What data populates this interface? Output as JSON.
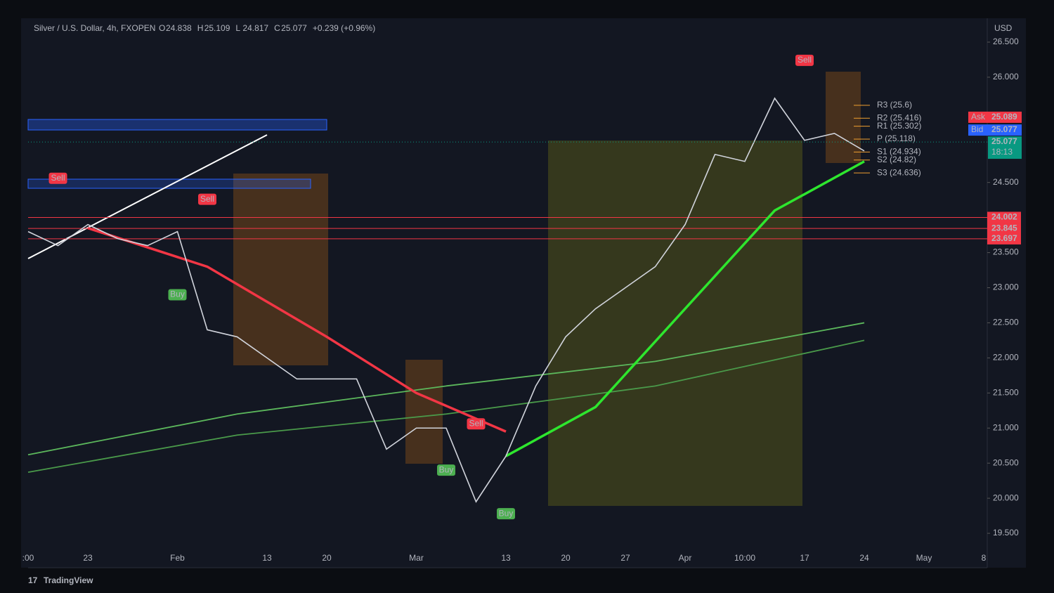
{
  "chart_data": {
    "type": "line",
    "title": "Silver / U.S. Dollar, 4h, FXOPEN",
    "ohlc": [
      {
        "key": "O",
        "value": "24.838"
      },
      {
        "key": "H",
        "value": "25.109"
      },
      {
        "key": "L",
        "value": "24.817"
      },
      {
        "key": "C",
        "value": "25.077"
      }
    ],
    "change": "+0.239 (+0.96%)",
    "currency": "USD",
    "brand": "TradingView",
    "categories": [
      ":00",
      null,
      "23",
      null,
      null,
      "Feb",
      null,
      null,
      "13",
      null,
      "20",
      null,
      null,
      "Mar",
      null,
      null,
      "13",
      null,
      "20",
      null,
      "27",
      null,
      "Apr",
      null,
      "10:00",
      null,
      "17",
      null,
      "24",
      null,
      "May",
      null,
      "8"
    ],
    "series": [
      {
        "color": "#d1d4dc",
        "values": [
          23.8,
          23.6,
          23.9,
          23.7,
          23.6,
          23.8,
          22.4,
          22.3,
          22.0,
          21.7,
          21.7,
          21.7,
          20.7,
          21.0,
          21.0,
          19.95,
          20.6,
          21.6,
          22.3,
          22.7,
          23.0,
          23.3,
          23.9,
          24.9,
          24.8,
          25.7,
          25.1,
          25.2,
          24.95,
          null,
          null,
          null,
          null
        ]
      }
    ],
    "overlays": [
      {
        "color": "#5cb85c",
        "x": [
          0,
          7,
          14,
          21,
          28
        ],
        "values": [
          20.62,
          21.2,
          21.6,
          21.95,
          22.5
        ]
      },
      {
        "color": "#4a9a4a",
        "x": [
          0,
          7,
          14,
          21,
          28
        ],
        "values": [
          20.37,
          20.9,
          21.2,
          21.6,
          22.25
        ]
      },
      {
        "color": "#f23645",
        "x": [
          2,
          6,
          10,
          13,
          16
        ],
        "values": [
          23.85,
          23.3,
          22.3,
          21.5,
          20.95
        ]
      },
      {
        "color": "#2ee62e",
        "x": [
          16,
          19,
          22,
          25,
          28
        ],
        "values": [
          20.6,
          21.3,
          22.7,
          24.1,
          24.8
        ]
      }
    ],
    "ylim": [
      19.01,
      26.82
    ],
    "yticks": [
      {
        "value": 19.5,
        "label": "19.500"
      },
      {
        "value": 20,
        "label": "20.000"
      },
      {
        "value": 20.5,
        "label": "20.500"
      },
      {
        "value": 21,
        "label": "21.000"
      },
      {
        "value": 21.5,
        "label": "21.500"
      },
      {
        "value": 22,
        "label": "22.000"
      },
      {
        "value": 22.5,
        "label": "22.500"
      },
      {
        "value": 23,
        "label": "23.000"
      },
      {
        "value": 23.5,
        "label": "23.500"
      },
      {
        "value": 24.5,
        "label": "24.500"
      },
      {
        "value": 26,
        "label": "26.000"
      },
      {
        "value": 26.5,
        "label": "26.500"
      }
    ],
    "pivots": [
      {
        "label": "R3 (25.6)",
        "value": 25.6
      },
      {
        "label": "R2 (25.416)",
        "value": 25.416
      },
      {
        "label": "R1 (25.302)",
        "value": 25.302
      },
      {
        "label": "P (25.118)",
        "value": 25.118
      },
      {
        "label": "S1 (24.934)",
        "value": 24.934
      },
      {
        "label": "S2 (24.82)",
        "value": 24.82
      },
      {
        "label": "S3 (24.636)",
        "value": 24.636
      }
    ],
    "pivot_color": "#f0a030",
    "levels": [
      24.002,
      23.845,
      23.697
    ],
    "level_color": "#f23645",
    "quotes": [
      {
        "name": "Ask",
        "value": 25.089,
        "color": "#f23645"
      },
      {
        "name": "Bid",
        "value": 25.077,
        "color": "#2962ff"
      }
    ],
    "last": {
      "value": 25.077,
      "countdown": "18:13",
      "color": "#089981"
    },
    "signals": [
      {
        "label": "Sell",
        "index": 1,
        "price": 24.56,
        "color": "#f23645"
      },
      {
        "label": "Sell",
        "index": 6,
        "price": 24.26,
        "color": "#f23645"
      },
      {
        "label": "Sell",
        "index": 15,
        "price": 21.06,
        "color": "#f23645"
      },
      {
        "label": "Sell",
        "index": 26,
        "price": 26.24,
        "color": "#f23645"
      },
      {
        "label": "Buy",
        "index": 5,
        "price": 22.9,
        "color": "#4caf50"
      },
      {
        "label": "Buy",
        "index": 14,
        "price": 20.4,
        "color": "#4caf50"
      },
      {
        "label": "Buy",
        "index": 16,
        "price": 19.78,
        "color": "#4caf50"
      }
    ]
  }
}
